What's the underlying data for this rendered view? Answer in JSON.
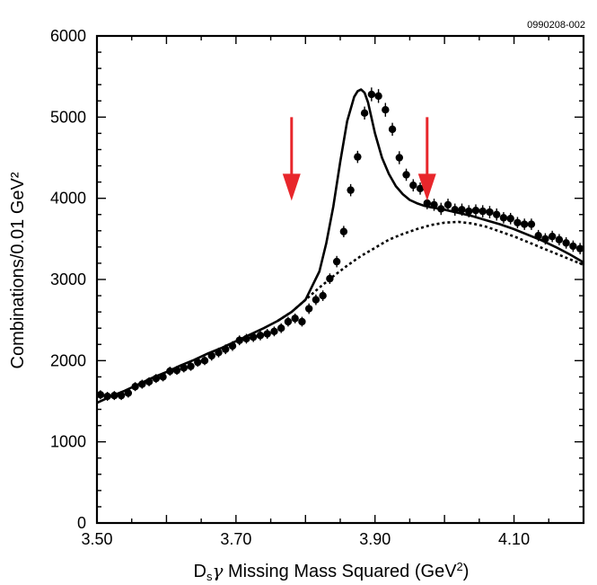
{
  "figure_id": "0990208-002",
  "chart_data": {
    "type": "scatter",
    "title": "",
    "xlabel": {
      "prefix": "D",
      "subscript": "s",
      "gamma": "γ",
      "rest": " Missing Mass Squared (GeV",
      "superscript": "2",
      "close": ")"
    },
    "ylabel": "Combinations/0.01 GeV²",
    "xlim": [
      3.5,
      4.2
    ],
    "ylim": [
      0,
      6000
    ],
    "x_ticks": [
      3.5,
      3.7,
      3.9,
      4.1
    ],
    "x_tick_labels": [
      "3.50",
      "3.70",
      "3.90",
      "4.10"
    ],
    "y_ticks": [
      0,
      1000,
      2000,
      3000,
      4000,
      5000,
      6000
    ],
    "y_tick_labels": [
      "0",
      "1000",
      "2000",
      "3000",
      "4000",
      "5000",
      "6000"
    ],
    "grid": false,
    "legend": "none",
    "series": [
      {
        "kind": "points",
        "x": [
          3.505,
          3.515,
          3.525,
          3.535,
          3.545,
          3.555,
          3.565,
          3.575,
          3.585,
          3.595,
          3.605,
          3.615,
          3.625,
          3.635,
          3.645,
          3.655,
          3.665,
          3.675,
          3.685,
          3.695,
          3.705,
          3.715,
          3.725,
          3.735,
          3.745,
          3.755,
          3.765,
          3.775,
          3.785,
          3.795,
          3.805,
          3.815,
          3.825,
          3.835,
          3.845,
          3.855,
          3.865,
          3.875,
          3.885,
          3.895,
          3.905,
          3.915,
          3.925,
          3.935,
          3.945,
          3.955,
          3.965,
          3.975,
          3.985,
          3.995,
          4.005,
          4.015,
          4.025,
          4.035,
          4.045,
          4.055,
          4.065,
          4.075,
          4.085,
          4.095,
          4.105,
          4.115,
          4.125,
          4.135,
          4.145,
          4.155,
          4.165,
          4.175,
          4.185,
          4.195
        ],
        "y": [
          1580,
          1560,
          1570,
          1570,
          1600,
          1680,
          1710,
          1740,
          1780,
          1800,
          1870,
          1880,
          1910,
          1930,
          1980,
          2000,
          2060,
          2100,
          2140,
          2180,
          2250,
          2270,
          2290,
          2310,
          2330,
          2360,
          2400,
          2480,
          2520,
          2480,
          2640,
          2750,
          2800,
          3010,
          3220,
          3590,
          4100,
          4510,
          5050,
          5280,
          5260,
          5090,
          4850,
          4500,
          4290,
          4160,
          4120,
          3940,
          3920,
          3870,
          3920,
          3860,
          3860,
          3840,
          3850,
          3840,
          3830,
          3800,
          3760,
          3750,
          3700,
          3680,
          3680,
          3540,
          3500,
          3530,
          3490,
          3450,
          3410,
          3380
        ],
        "error": [
          55,
          55,
          55,
          55,
          55,
          55,
          55,
          55,
          55,
          55,
          55,
          55,
          55,
          55,
          55,
          55,
          60,
          60,
          60,
          60,
          60,
          60,
          60,
          60,
          60,
          60,
          60,
          60,
          60,
          60,
          65,
          65,
          65,
          65,
          70,
          70,
          75,
          75,
          80,
          85,
          85,
          85,
          80,
          80,
          75,
          75,
          75,
          75,
          75,
          75,
          75,
          75,
          75,
          75,
          75,
          75,
          75,
          75,
          70,
          70,
          70,
          70,
          70,
          70,
          70,
          70,
          70,
          70,
          70,
          70
        ],
        "color": "#000000"
      },
      {
        "kind": "fit-line",
        "style": "solid",
        "x": [
          3.5,
          3.52,
          3.54,
          3.56,
          3.58,
          3.6,
          3.62,
          3.64,
          3.66,
          3.68,
          3.7,
          3.72,
          3.74,
          3.76,
          3.78,
          3.8,
          3.82,
          3.83,
          3.84,
          3.85,
          3.86,
          3.87,
          3.875,
          3.88,
          3.885,
          3.89,
          3.9,
          3.91,
          3.92,
          3.93,
          3.94,
          3.95,
          3.96,
          3.97,
          3.98,
          3.99,
          4.0,
          4.02,
          4.04,
          4.06,
          4.08,
          4.1,
          4.12,
          4.14,
          4.16,
          4.18,
          4.2
        ],
        "y": [
          1480,
          1560,
          1630,
          1710,
          1790,
          1860,
          1940,
          2010,
          2090,
          2160,
          2240,
          2320,
          2400,
          2490,
          2600,
          2750,
          3100,
          3450,
          3900,
          4450,
          4950,
          5250,
          5320,
          5340,
          5300,
          5180,
          4800,
          4500,
          4300,
          4150,
          4050,
          3980,
          3940,
          3910,
          3890,
          3875,
          3860,
          3820,
          3780,
          3730,
          3680,
          3620,
          3550,
          3480,
          3400,
          3310,
          3210
        ],
        "color": "#000000"
      },
      {
        "kind": "background-line",
        "style": "dashed",
        "x": [
          3.76,
          3.78,
          3.8,
          3.82,
          3.84,
          3.86,
          3.88,
          3.9,
          3.92,
          3.94,
          3.96,
          3.98,
          4.0,
          4.02,
          4.04,
          4.06,
          4.08,
          4.1,
          4.12,
          4.14,
          4.16,
          4.18,
          4.2
        ],
        "y": [
          2490,
          2600,
          2750,
          2900,
          3040,
          3170,
          3290,
          3390,
          3490,
          3560,
          3620,
          3670,
          3700,
          3710,
          3690,
          3650,
          3590,
          3530,
          3460,
          3390,
          3320,
          3250,
          3180
        ],
        "color": "#000000"
      }
    ],
    "annotations": [
      {
        "type": "arrow",
        "direction": "down",
        "x": 3.78,
        "y_top": 5000,
        "y_bottom": 3970,
        "color": "#e8262b"
      },
      {
        "type": "arrow",
        "direction": "down",
        "x": 3.975,
        "y_top": 5000,
        "y_bottom": 3970,
        "color": "#e8262b"
      }
    ]
  }
}
